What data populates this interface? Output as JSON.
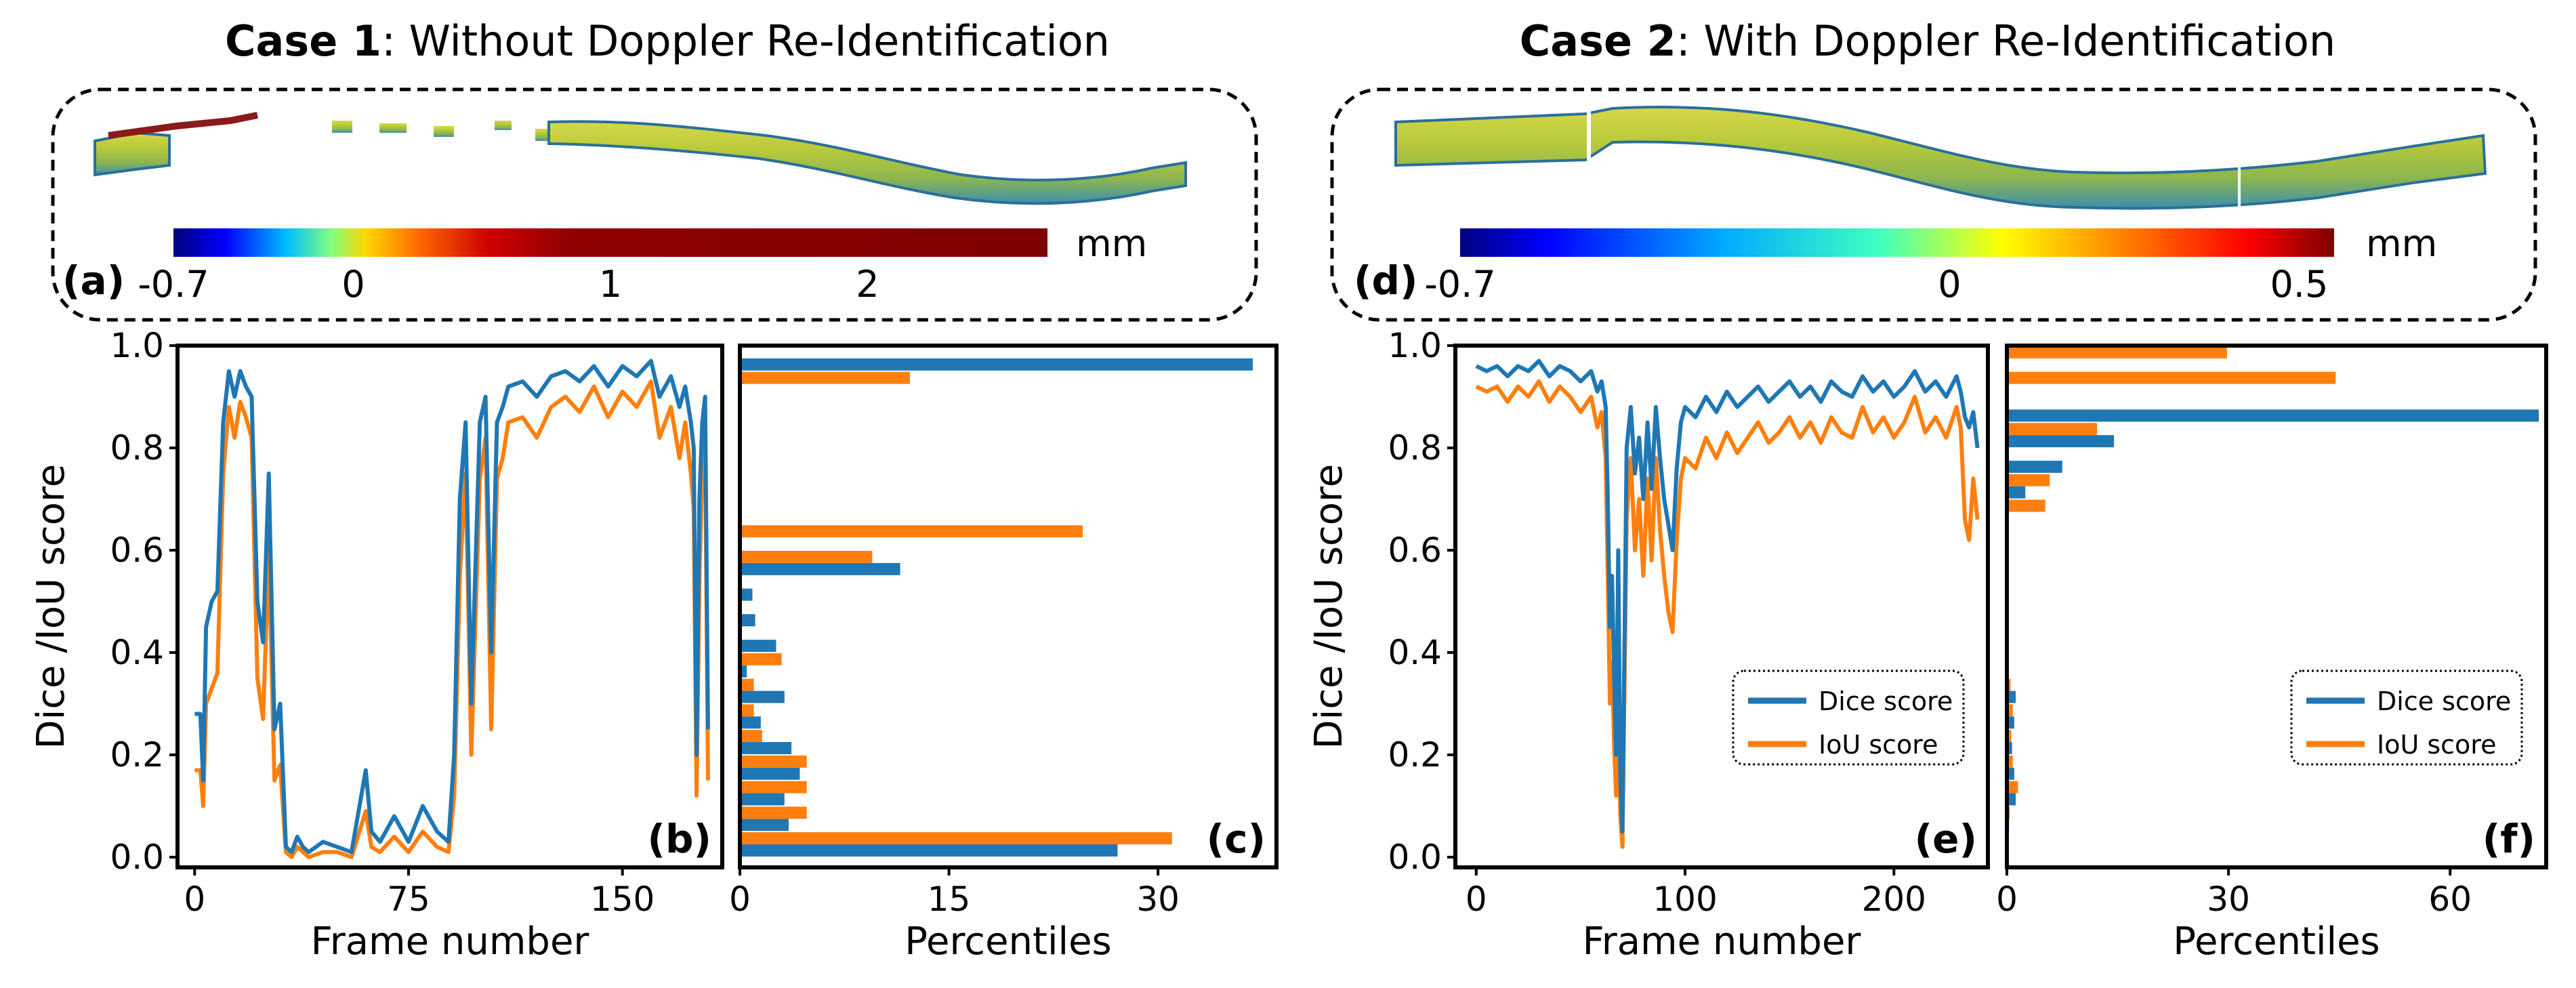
{
  "case1": {
    "title_bold": "Case 1",
    "title_rest": ": Without Doppler Re-Identification",
    "panel_a": {
      "letter": "(a)",
      "colorbar": {
        "unit": "mm",
        "ticks": [
          "-0.7",
          "0",
          "1",
          "2"
        ],
        "tick_values": [
          -0.7,
          0,
          1,
          2
        ],
        "range": [
          -0.7,
          2.7
        ]
      }
    }
  },
  "case2": {
    "title_bold": "Case 2",
    "title_rest": ": With Doppler Re-Identification",
    "panel_d": {
      "letter": "(d)",
      "colorbar": {
        "unit": "mm",
        "ticks": [
          "-0.7",
          "0",
          "0.5"
        ],
        "tick_values": [
          -0.7,
          0,
          0.5
        ],
        "range": [
          -0.7,
          0.55
        ]
      }
    }
  },
  "colors": {
    "dice": "#1f77b4",
    "iou": "#ff7f0e",
    "frame": "#000000"
  },
  "chart_data": [
    {
      "id": "b",
      "letter": "(b)",
      "type": "line",
      "xlabel": "Frame number",
      "ylabel": "Dice /IoU score",
      "xlim": [
        -6,
        185
      ],
      "ylim": [
        -0.02,
        1.0
      ],
      "xticks": [
        0,
        75,
        150
      ],
      "yticks": [
        0.0,
        0.2,
        0.4,
        0.6,
        0.8,
        1.0
      ],
      "ytick_labels": [
        "0.0",
        "0.2",
        "0.4",
        "0.6",
        "0.8",
        "1.0"
      ],
      "legend": false,
      "series": [
        {
          "name": "Dice score",
          "key": "dice",
          "x": [
            0,
            2,
            3,
            4,
            6,
            8,
            10,
            12,
            14,
            16,
            18,
            20,
            22,
            24,
            26,
            28,
            30,
            32,
            34,
            36,
            38,
            40,
            45,
            50,
            55,
            60,
            62,
            65,
            70,
            75,
            80,
            85,
            89,
            91,
            93,
            95,
            97,
            100,
            102,
            104,
            106,
            108,
            110,
            115,
            120,
            125,
            130,
            135,
            140,
            145,
            150,
            155,
            160,
            163,
            165,
            167,
            170,
            172,
            174,
            175,
            176,
            177,
            178,
            179,
            180
          ],
          "y": [
            0.28,
            0.28,
            0.15,
            0.45,
            0.5,
            0.52,
            0.85,
            0.95,
            0.9,
            0.95,
            0.92,
            0.9,
            0.5,
            0.42,
            0.75,
            0.25,
            0.3,
            0.02,
            0.01,
            0.04,
            0.02,
            0.01,
            0.03,
            0.02,
            0.01,
            0.17,
            0.05,
            0.03,
            0.08,
            0.03,
            0.1,
            0.05,
            0.03,
            0.2,
            0.7,
            0.85,
            0.3,
            0.85,
            0.9,
            0.4,
            0.85,
            0.88,
            0.92,
            0.93,
            0.9,
            0.94,
            0.95,
            0.93,
            0.96,
            0.92,
            0.96,
            0.94,
            0.97,
            0.9,
            0.92,
            0.94,
            0.88,
            0.92,
            0.85,
            0.8,
            0.2,
            0.7,
            0.85,
            0.9,
            0.25
          ]
        },
        {
          "name": "IoU score",
          "key": "iou",
          "x": [
            0,
            2,
            3,
            4,
            6,
            8,
            10,
            12,
            14,
            16,
            18,
            20,
            22,
            24,
            26,
            28,
            30,
            32,
            34,
            36,
            38,
            40,
            45,
            50,
            55,
            60,
            62,
            65,
            70,
            75,
            80,
            85,
            89,
            91,
            93,
            95,
            97,
            100,
            102,
            104,
            106,
            108,
            110,
            115,
            120,
            125,
            130,
            135,
            140,
            145,
            150,
            155,
            160,
            163,
            165,
            167,
            170,
            172,
            174,
            175,
            176,
            177,
            178,
            179,
            180
          ],
          "y": [
            0.17,
            0.17,
            0.1,
            0.3,
            0.33,
            0.36,
            0.75,
            0.88,
            0.82,
            0.89,
            0.86,
            0.82,
            0.35,
            0.27,
            0.6,
            0.15,
            0.18,
            0.01,
            0.0,
            0.02,
            0.01,
            0.0,
            0.01,
            0.01,
            0.0,
            0.09,
            0.02,
            0.01,
            0.04,
            0.01,
            0.05,
            0.02,
            0.01,
            0.12,
            0.55,
            0.75,
            0.2,
            0.74,
            0.82,
            0.25,
            0.74,
            0.78,
            0.85,
            0.86,
            0.82,
            0.88,
            0.9,
            0.87,
            0.92,
            0.86,
            0.91,
            0.88,
            0.93,
            0.82,
            0.85,
            0.88,
            0.78,
            0.85,
            0.75,
            0.68,
            0.12,
            0.55,
            0.75,
            0.82,
            0.15
          ]
        }
      ]
    },
    {
      "id": "c",
      "letter": "(c)",
      "type": "bar",
      "orientation": "horizontal",
      "xlabel": "Percentiles",
      "ylabel": "",
      "xlim": [
        0,
        38.5
      ],
      "ylim": [
        -0.02,
        1.0
      ],
      "xticks": [
        0,
        15,
        30
      ],
      "bin_width": 0.05,
      "bin_centers": [
        0.025,
        0.075,
        0.125,
        0.175,
        0.225,
        0.275,
        0.325,
        0.375,
        0.425,
        0.475,
        0.525,
        0.575,
        0.625,
        0.675,
        0.725,
        0.775,
        0.825,
        0.875,
        0.925,
        0.975
      ],
      "series": [
        {
          "name": "Dice score",
          "key": "dice",
          "values": [
            27.1,
            3.5,
            3.2,
            4.3,
            3.7,
            1.5,
            3.2,
            0.5,
            2.6,
            1.1,
            0.9,
            11.5,
            0,
            0,
            0,
            0,
            0,
            0,
            0,
            36.8
          ]
        },
        {
          "name": "IoU score",
          "key": "iou",
          "values": [
            31.0,
            4.8,
            4.8,
            4.8,
            1.6,
            1.0,
            1.0,
            3.0,
            0,
            0,
            0,
            9.5,
            24.6,
            0,
            0,
            0,
            0,
            0,
            12.2,
            0
          ]
        }
      ]
    },
    {
      "id": "e",
      "letter": "(e)",
      "type": "line",
      "xlabel": "Frame number",
      "ylabel": "Dice /IoU score",
      "xlim": [
        -10,
        245
      ],
      "ylim": [
        -0.02,
        1.0
      ],
      "xticks": [
        0,
        100,
        200
      ],
      "yticks": [
        0.0,
        0.2,
        0.4,
        0.6,
        0.8,
        1.0
      ],
      "ytick_labels": [
        "0.0",
        "0.2",
        "0.4",
        "0.6",
        "0.8",
        "1.0"
      ],
      "legend": true,
      "legend_loc": "lower right",
      "series": [
        {
          "name": "Dice score",
          "key": "dice",
          "x": [
            0,
            5,
            10,
            15,
            20,
            25,
            30,
            35,
            40,
            45,
            50,
            55,
            58,
            60,
            62,
            63,
            64,
            65,
            66,
            67,
            68,
            69,
            70,
            72,
            74,
            76,
            78,
            80,
            82,
            84,
            86,
            88,
            90,
            92,
            94,
            96,
            98,
            100,
            105,
            110,
            115,
            120,
            125,
            130,
            135,
            140,
            145,
            150,
            155,
            160,
            165,
            170,
            175,
            180,
            185,
            190,
            195,
            200,
            205,
            210,
            215,
            220,
            225,
            230,
            232,
            234,
            236,
            238,
            240
          ],
          "y": [
            0.96,
            0.95,
            0.96,
            0.94,
            0.96,
            0.95,
            0.97,
            0.94,
            0.96,
            0.95,
            0.93,
            0.95,
            0.91,
            0.93,
            0.88,
            0.7,
            0.45,
            0.55,
            0.35,
            0.2,
            0.6,
            0.15,
            0.05,
            0.8,
            0.88,
            0.75,
            0.82,
            0.7,
            0.85,
            0.72,
            0.88,
            0.78,
            0.7,
            0.65,
            0.6,
            0.76,
            0.85,
            0.88,
            0.86,
            0.9,
            0.87,
            0.91,
            0.88,
            0.9,
            0.92,
            0.89,
            0.91,
            0.93,
            0.9,
            0.92,
            0.89,
            0.93,
            0.91,
            0.9,
            0.94,
            0.91,
            0.93,
            0.9,
            0.92,
            0.95,
            0.91,
            0.93,
            0.9,
            0.94,
            0.91,
            0.86,
            0.84,
            0.87,
            0.8
          ]
        },
        {
          "name": "IoU score",
          "key": "iou",
          "x": [
            0,
            5,
            10,
            15,
            20,
            25,
            30,
            35,
            40,
            45,
            50,
            55,
            58,
            60,
            62,
            63,
            64,
            65,
            66,
            67,
            68,
            69,
            70,
            72,
            74,
            76,
            78,
            80,
            82,
            84,
            86,
            88,
            90,
            92,
            94,
            96,
            98,
            100,
            105,
            110,
            115,
            120,
            125,
            130,
            135,
            140,
            145,
            150,
            155,
            160,
            165,
            170,
            175,
            180,
            185,
            190,
            195,
            200,
            205,
            210,
            215,
            220,
            225,
            230,
            232,
            234,
            236,
            238,
            240
          ],
          "y": [
            0.92,
            0.91,
            0.92,
            0.89,
            0.92,
            0.9,
            0.93,
            0.89,
            0.92,
            0.9,
            0.87,
            0.9,
            0.84,
            0.87,
            0.78,
            0.55,
            0.3,
            0.38,
            0.22,
            0.12,
            0.42,
            0.08,
            0.02,
            0.66,
            0.78,
            0.6,
            0.7,
            0.55,
            0.74,
            0.58,
            0.78,
            0.64,
            0.55,
            0.48,
            0.44,
            0.62,
            0.74,
            0.78,
            0.76,
            0.82,
            0.78,
            0.83,
            0.79,
            0.82,
            0.85,
            0.81,
            0.83,
            0.86,
            0.82,
            0.85,
            0.81,
            0.86,
            0.83,
            0.82,
            0.88,
            0.83,
            0.86,
            0.82,
            0.85,
            0.9,
            0.83,
            0.86,
            0.82,
            0.88,
            0.84,
            0.66,
            0.62,
            0.74,
            0.66
          ]
        }
      ]
    },
    {
      "id": "f",
      "letter": "(f)",
      "type": "bar",
      "orientation": "horizontal",
      "xlabel": "Percentiles",
      "ylabel": "",
      "xlim": [
        0,
        73
      ],
      "ylim": [
        -0.02,
        1.0
      ],
      "xticks": [
        0,
        30,
        60
      ],
      "bin_width": 0.05,
      "bin_centers": [
        0.025,
        0.075,
        0.125,
        0.175,
        0.225,
        0.275,
        0.325,
        0.375,
        0.425,
        0.475,
        0.525,
        0.575,
        0.625,
        0.675,
        0.725,
        0.775,
        0.825,
        0.875,
        0.925,
        0.975
      ],
      "series": [
        {
          "name": "Dice score",
          "key": "dice",
          "values": [
            0,
            0.3,
            1.2,
            1.0,
            0.7,
            1.0,
            1.2,
            0,
            0,
            0,
            0,
            0,
            0,
            0,
            2.5,
            7.5,
            14.5,
            72,
            0,
            0
          ]
        },
        {
          "name": "IoU score",
          "key": "iou",
          "values": [
            0,
            0.4,
            1.5,
            0.8,
            0.6,
            0.8,
            0.5,
            0,
            0,
            0,
            0,
            0,
            0,
            5.2,
            5.8,
            0,
            12.2,
            0,
            44.5,
            29.8
          ]
        }
      ],
      "legend": true,
      "legend_loc": "lower right"
    }
  ]
}
